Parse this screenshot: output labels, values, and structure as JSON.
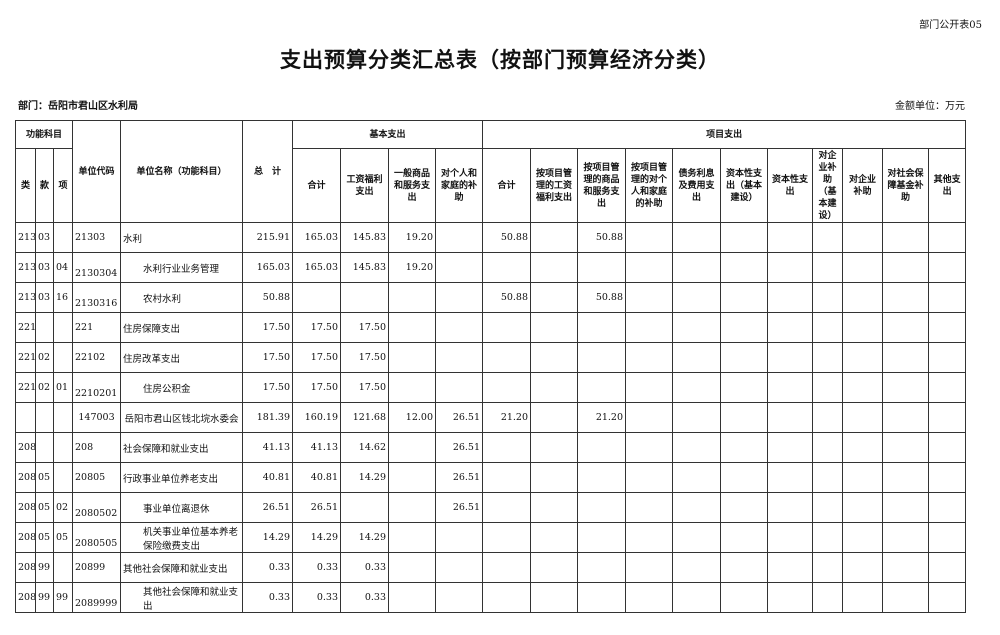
{
  "form_tag": "部门公开表05",
  "title": "支出预算分类汇总表（按部门预算经济分类）",
  "department": "部门：岳阳市君山区水利局",
  "unit": "金额单位：万元",
  "headers": {
    "func_subject": "功能科目",
    "lei": "类",
    "kuan": "款",
    "xiang": "项",
    "unit_code": "单位代码",
    "unit_name": "单位名称（功能科目）",
    "total": "总　计",
    "basic": "基本支出",
    "project": "项目支出",
    "basic_cols": [
      "合计",
      "工资福利支出",
      "一般商品和服务支出",
      "对个人和家庭的补助"
    ],
    "project_cols": [
      "合计",
      "按项目管理的工资福利支出",
      "按项目管理的商品和服务支出",
      "按项目管理的对个人和家庭的补助",
      "债务利息及费用支出",
      "资本性支出（基本建设）",
      "资本性支出",
      "对企业补助（基本建设）",
      "对企业补助",
      "对社会保障基金补助",
      "其他支出"
    ]
  },
  "rows": [
    {
      "lei": "213",
      "kuan": "03",
      "xiang": "",
      "code": "21303",
      "name": "水利",
      "level": 2,
      "values": [
        "215.91",
        "165.03",
        "145.83",
        "19.20",
        "",
        "50.88",
        "",
        "50.88",
        "",
        "",
        "",
        "",
        "",
        "",
        "",
        ""
      ]
    },
    {
      "lei": "213",
      "kuan": "03",
      "xiang": "04",
      "code": "2130304",
      "name": "水利行业业务管理",
      "level": 3,
      "values": [
        "165.03",
        "165.03",
        "145.83",
        "19.20",
        "",
        "",
        "",
        "",
        "",
        "",
        "",
        "",
        "",
        "",
        "",
        ""
      ]
    },
    {
      "lei": "213",
      "kuan": "03",
      "xiang": "16",
      "code": "2130316",
      "name": "农村水利",
      "level": 3,
      "values": [
        "50.88",
        "",
        "",
        "",
        "",
        "50.88",
        "",
        "50.88",
        "",
        "",
        "",
        "",
        "",
        "",
        "",
        ""
      ]
    },
    {
      "lei": "221",
      "kuan": "",
      "xiang": "",
      "code": "221",
      "name": "住房保障支出",
      "level": 1,
      "values": [
        "17.50",
        "17.50",
        "17.50",
        "",
        "",
        "",
        "",
        "",
        "",
        "",
        "",
        "",
        "",
        "",
        "",
        ""
      ]
    },
    {
      "lei": "221",
      "kuan": "02",
      "xiang": "",
      "code": "22102",
      "name": "住房改革支出",
      "level": 2,
      "values": [
        "17.50",
        "17.50",
        "17.50",
        "",
        "",
        "",
        "",
        "",
        "",
        "",
        "",
        "",
        "",
        "",
        "",
        ""
      ]
    },
    {
      "lei": "221",
      "kuan": "02",
      "xiang": "01",
      "code": "2210201",
      "name": "住房公积金",
      "level": 3,
      "values": [
        "17.50",
        "17.50",
        "17.50",
        "",
        "",
        "",
        "",
        "",
        "",
        "",
        "",
        "",
        "",
        "",
        "",
        ""
      ]
    },
    {
      "lei": "",
      "kuan": "",
      "xiang": "",
      "code": "147003",
      "name": "岳阳市君山区钱北垸水委会",
      "level": 0,
      "values": [
        "181.39",
        "160.19",
        "121.68",
        "12.00",
        "26.51",
        "21.20",
        "",
        "21.20",
        "",
        "",
        "",
        "",
        "",
        "",
        "",
        ""
      ]
    },
    {
      "lei": "208",
      "kuan": "",
      "xiang": "",
      "code": "208",
      "name": "社会保障和就业支出",
      "level": 1,
      "values": [
        "41.13",
        "41.13",
        "14.62",
        "",
        "26.51",
        "",
        "",
        "",
        "",
        "",
        "",
        "",
        "",
        "",
        "",
        ""
      ]
    },
    {
      "lei": "208",
      "kuan": "05",
      "xiang": "",
      "code": "20805",
      "name": "行政事业单位养老支出",
      "level": 2,
      "values": [
        "40.81",
        "40.81",
        "14.29",
        "",
        "26.51",
        "",
        "",
        "",
        "",
        "",
        "",
        "",
        "",
        "",
        "",
        ""
      ]
    },
    {
      "lei": "208",
      "kuan": "05",
      "xiang": "02",
      "code": "2080502",
      "name": "事业单位离退休",
      "level": 3,
      "values": [
        "26.51",
        "26.51",
        "",
        "",
        "26.51",
        "",
        "",
        "",
        "",
        "",
        "",
        "",
        "",
        "",
        "",
        ""
      ]
    },
    {
      "lei": "208",
      "kuan": "05",
      "xiang": "05",
      "code": "2080505",
      "name": "机关事业单位基本养老保险缴费支出",
      "level": 3,
      "values": [
        "14.29",
        "14.29",
        "14.29",
        "",
        "",
        "",
        "",
        "",
        "",
        "",
        "",
        "",
        "",
        "",
        "",
        ""
      ]
    },
    {
      "lei": "208",
      "kuan": "99",
      "xiang": "",
      "code": "20899",
      "name": "其他社会保障和就业支出",
      "level": 2,
      "values": [
        "0.33",
        "0.33",
        "0.33",
        "",
        "",
        "",
        "",
        "",
        "",
        "",
        "",
        "",
        "",
        "",
        "",
        ""
      ]
    },
    {
      "lei": "208",
      "kuan": "99",
      "xiang": "99",
      "code": "2089999",
      "name": "其他社会保障和就业支出",
      "level": 3,
      "values": [
        "0.33",
        "0.33",
        "0.33",
        "",
        "",
        "",
        "",
        "",
        "",
        "",
        "",
        "",
        "",
        "",
        "",
        ""
      ]
    }
  ]
}
